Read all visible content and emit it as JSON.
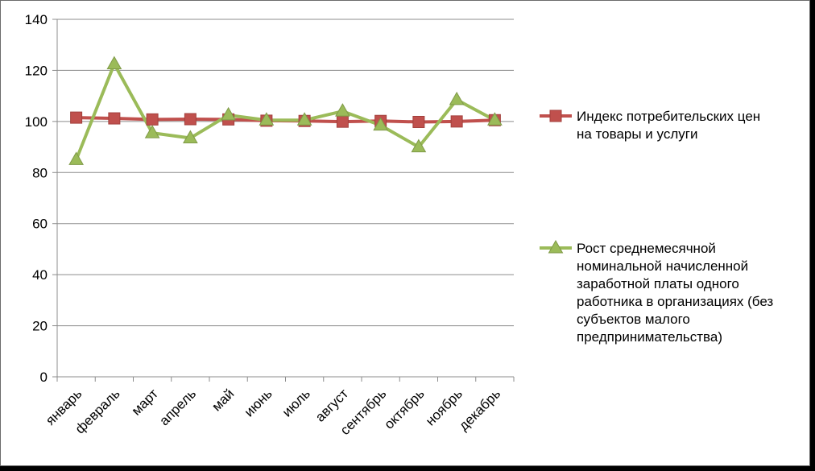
{
  "chart_data": {
    "type": "line",
    "title": "",
    "xlabel": "",
    "ylabel": "",
    "ylim": [
      0,
      140
    ],
    "yticks": [
      0,
      20,
      40,
      60,
      80,
      100,
      120,
      140
    ],
    "grid": true,
    "legend_position": "right",
    "categories": [
      "январь",
      "февраль",
      "март",
      "апрель",
      "май",
      "июнь",
      "июль",
      "август",
      "сентябрь",
      "октябрь",
      "ноябрь",
      "декабрь"
    ],
    "series": [
      {
        "name": "Индекс потребительских цен на товары и услуги",
        "legend_lines": [
          "Индекс потребительских цен",
          "на товары и услуги"
        ],
        "color": "#c0504d",
        "marker": "square",
        "values": [
          101.5,
          101.2,
          100.8,
          100.9,
          100.8,
          100.3,
          100.2,
          99.9,
          100.2,
          99.8,
          100.0,
          100.5
        ]
      },
      {
        "name": "Рост среднемесячной номинальной начисленной заработной платы одного работника в организациях (без субъектов малого предпринимательства)",
        "legend_lines": [
          "Рост среднемесячной",
          "номинальной начисленной",
          "заработной платы одного",
          "работника в организациях (без",
          "субъектов малого",
          "предпринимательства)"
        ],
        "color": "#9bbb59",
        "marker": "triangle",
        "values": [
          85,
          122.5,
          95.5,
          93.5,
          102.5,
          100.5,
          100.5,
          104,
          98.5,
          90,
          108.5,
          100.5
        ]
      }
    ]
  }
}
